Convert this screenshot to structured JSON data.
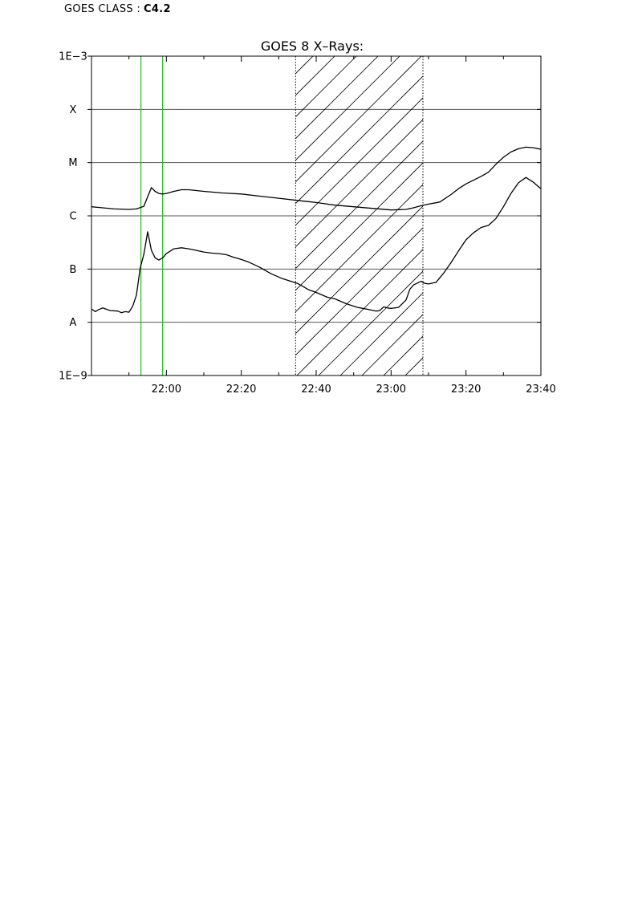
{
  "goes_class": {
    "label": "GOES CLASS :",
    "value": "C4.2"
  },
  "colors": {
    "axes": "#000000",
    "curve": "#000000",
    "grid": "#555555",
    "green_marker": "#22bb22",
    "hatch": "#000000"
  },
  "chart_data": {
    "type": "line",
    "title": "GOES 8 X–Rays:",
    "xlabel": "",
    "ylabel": "",
    "x_unit": "minutes after 21:40",
    "xlim": [
      0,
      120
    ],
    "ylim": [
      -9,
      -3
    ],
    "y_scale": "log10",
    "grid": true,
    "x_ticks": [
      {
        "value": 20,
        "label": "22:00"
      },
      {
        "value": 40,
        "label": "22:20"
      },
      {
        "value": 60,
        "label": "22:40"
      },
      {
        "value": 80,
        "label": "23:00"
      },
      {
        "value": 100,
        "label": "23:20"
      },
      {
        "value": 120,
        "label": "23:40"
      }
    ],
    "y_labels": [
      {
        "value": -3,
        "label": "1E−3"
      },
      {
        "value": -4,
        "label": "X"
      },
      {
        "value": -5,
        "label": "M"
      },
      {
        "value": -6,
        "label": "C"
      },
      {
        "value": -7,
        "label": "B"
      },
      {
        "value": -8,
        "label": "A"
      },
      {
        "value": -9,
        "label": "1E−9"
      }
    ],
    "grid_lines": [
      -4,
      -5,
      -6,
      -7,
      -8
    ],
    "green_lines": [
      13.2,
      19
    ],
    "shaded_region": [
      54.5,
      88.5
    ],
    "series": [
      {
        "x": [
          0,
          3,
          6,
          10,
          12,
          14,
          15,
          16,
          17,
          18,
          19,
          20,
          22,
          24,
          26,
          30,
          35,
          40,
          45,
          50,
          55,
          60,
          65,
          70,
          75,
          80,
          84,
          86,
          88,
          90,
          93,
          96,
          98,
          100,
          102,
          104,
          106,
          108,
          110,
          112,
          114,
          116,
          118,
          120
        ],
        "y": [
          -5.83,
          -5.85,
          -5.87,
          -5.88,
          -5.87,
          -5.82,
          -5.64,
          -5.47,
          -5.54,
          -5.58,
          -5.59,
          -5.58,
          -5.54,
          -5.51,
          -5.51,
          -5.54,
          -5.57,
          -5.59,
          -5.63,
          -5.67,
          -5.71,
          -5.75,
          -5.8,
          -5.83,
          -5.86,
          -5.89,
          -5.88,
          -5.85,
          -5.81,
          -5.78,
          -5.74,
          -5.6,
          -5.49,
          -5.4,
          -5.33,
          -5.26,
          -5.18,
          -5.03,
          -4.9,
          -4.8,
          -4.74,
          -4.71,
          -4.72,
          -4.75
        ]
      },
      {
        "x": [
          0,
          1,
          2,
          3,
          5,
          7,
          8,
          9,
          10,
          11,
          12,
          13,
          14,
          15,
          16,
          17,
          18,
          19,
          20,
          22,
          24,
          26,
          28,
          30,
          32,
          34,
          36,
          38,
          40,
          42,
          45,
          48,
          51,
          55,
          58,
          60,
          63,
          65,
          68,
          71,
          74,
          76,
          77,
          78,
          79,
          80,
          82,
          84,
          85,
          86,
          88,
          89,
          90,
          92,
          94,
          96,
          98,
          100,
          102,
          104,
          106,
          108,
          110,
          112,
          114,
          116,
          118,
          120
        ],
        "y": [
          -7.75,
          -7.8,
          -7.76,
          -7.73,
          -7.78,
          -7.79,
          -7.82,
          -7.8,
          -7.81,
          -7.7,
          -7.49,
          -6.98,
          -6.72,
          -6.3,
          -6.65,
          -6.79,
          -6.83,
          -6.79,
          -6.71,
          -6.62,
          -6.6,
          -6.62,
          -6.65,
          -6.68,
          -6.7,
          -6.71,
          -6.73,
          -6.78,
          -6.82,
          -6.87,
          -6.97,
          -7.09,
          -7.18,
          -7.27,
          -7.39,
          -7.44,
          -7.53,
          -7.56,
          -7.65,
          -7.72,
          -7.76,
          -7.79,
          -7.78,
          -7.71,
          -7.73,
          -7.74,
          -7.72,
          -7.58,
          -7.38,
          -7.3,
          -7.23,
          -7.27,
          -7.28,
          -7.25,
          -7.08,
          -6.88,
          -6.66,
          -6.45,
          -6.32,
          -6.22,
          -6.18,
          -6.05,
          -5.83,
          -5.58,
          -5.38,
          -5.28,
          -5.37,
          -5.49
        ]
      }
    ]
  }
}
